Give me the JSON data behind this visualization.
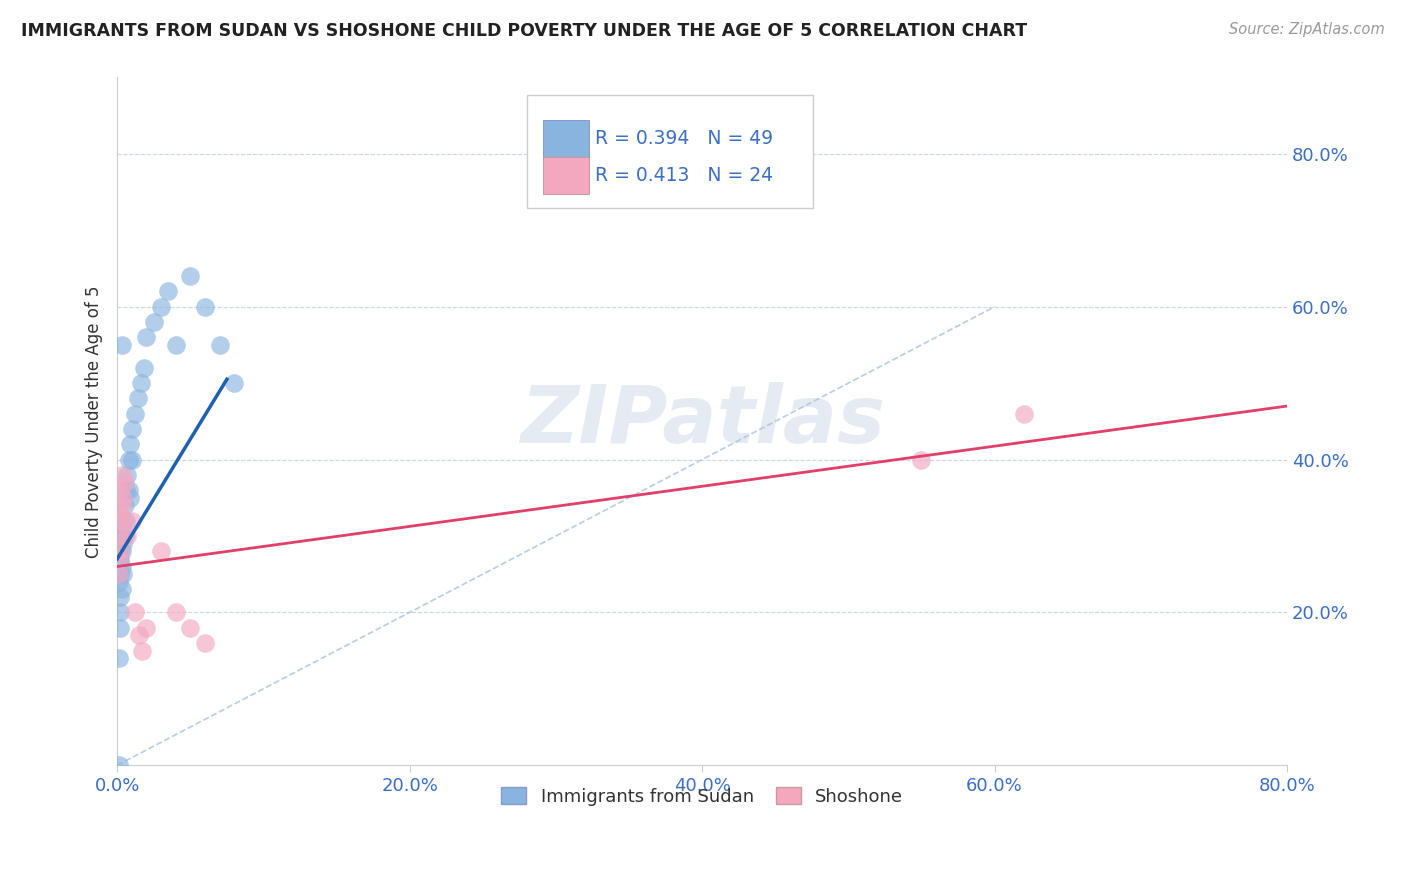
{
  "title": "IMMIGRANTS FROM SUDAN VS SHOSHONE CHILD POVERTY UNDER THE AGE OF 5 CORRELATION CHART",
  "source": "Source: ZipAtlas.com",
  "ylabel": "Child Poverty Under the Age of 5",
  "xlim": [
    0.0,
    0.8
  ],
  "ylim": [
    0.0,
    0.9
  ],
  "xticks": [
    0.0,
    0.2,
    0.4,
    0.6,
    0.8
  ],
  "yticks": [
    0.2,
    0.4,
    0.6,
    0.8
  ],
  "xticklabels": [
    "0.0%",
    "20.0%",
    "40.0%",
    "60.0%",
    "80.0%"
  ],
  "yticklabels": [
    "20.0%",
    "40.0%",
    "60.0%",
    "80.0%"
  ],
  "blue_color": "#8ab4e0",
  "pink_color": "#f4a8c0",
  "blue_line_color": "#2060b0",
  "pink_line_color": "#e0406a",
  "diag_color": "#a8c0dc",
  "R_blue": 0.394,
  "N_blue": 49,
  "R_pink": 0.413,
  "N_pink": 24,
  "legend_label_blue": "Immigrants from Sudan",
  "legend_label_pink": "Shoshone",
  "watermark": "ZIPatlas",
  "blue_scatter_x": [
    0.001,
    0.001,
    0.001,
    0.001,
    0.001,
    0.001,
    0.001,
    0.001,
    0.002,
    0.002,
    0.002,
    0.002,
    0.002,
    0.002,
    0.002,
    0.003,
    0.003,
    0.003,
    0.003,
    0.004,
    0.004,
    0.004,
    0.005,
    0.005,
    0.006,
    0.006,
    0.007,
    0.008,
    0.008,
    0.009,
    0.01,
    0.01,
    0.012,
    0.014,
    0.016,
    0.018,
    0.02,
    0.025,
    0.03,
    0.035,
    0.04,
    0.05,
    0.06,
    0.07,
    0.08,
    0.009,
    0.003,
    0.001,
    0.001
  ],
  "blue_scatter_y": [
    0.27,
    0.28,
    0.29,
    0.3,
    0.31,
    0.32,
    0.24,
    0.25,
    0.27,
    0.28,
    0.3,
    0.25,
    0.22,
    0.2,
    0.18,
    0.3,
    0.28,
    0.26,
    0.23,
    0.32,
    0.29,
    0.25,
    0.34,
    0.3,
    0.36,
    0.32,
    0.38,
    0.4,
    0.36,
    0.42,
    0.44,
    0.4,
    0.46,
    0.48,
    0.5,
    0.52,
    0.56,
    0.58,
    0.6,
    0.62,
    0.55,
    0.64,
    0.6,
    0.55,
    0.5,
    0.35,
    0.55,
    0.14,
    0.0
  ],
  "pink_scatter_x": [
    0.001,
    0.001,
    0.001,
    0.001,
    0.002,
    0.002,
    0.002,
    0.003,
    0.003,
    0.004,
    0.004,
    0.005,
    0.007,
    0.01,
    0.012,
    0.015,
    0.017,
    0.02,
    0.03,
    0.04,
    0.05,
    0.06,
    0.55,
    0.62
  ],
  "pink_scatter_y": [
    0.27,
    0.3,
    0.33,
    0.25,
    0.32,
    0.36,
    0.28,
    0.38,
    0.34,
    0.35,
    0.32,
    0.37,
    0.3,
    0.32,
    0.2,
    0.17,
    0.15,
    0.18,
    0.28,
    0.2,
    0.18,
    0.16,
    0.4,
    0.46
  ],
  "blue_line_x": [
    0.0,
    0.075
  ],
  "blue_line_y": [
    0.27,
    0.505
  ],
  "pink_line_x": [
    0.0,
    0.8
  ],
  "pink_line_y": [
    0.26,
    0.47
  ]
}
